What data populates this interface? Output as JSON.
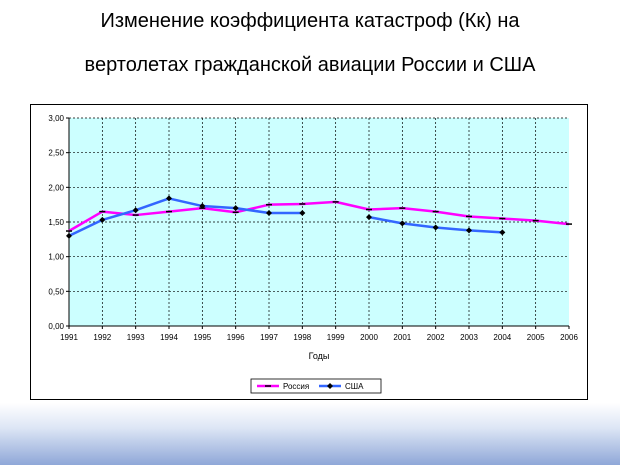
{
  "header": {
    "title_line1": "Изменение коэффициента катастроф (Кк) на",
    "title_line2": "вертолетах гражданской авиации России и США"
  },
  "chart_data": {
    "type": "line",
    "categories": [
      "1991",
      "1992",
      "1993",
      "1994",
      "1995",
      "1996",
      "1997",
      "1998",
      "1999",
      "2000",
      "2001",
      "2002",
      "2003",
      "2004",
      "2005",
      "2006"
    ],
    "series": [
      {
        "name": "Россия",
        "color": "#ff00ff",
        "values": [
          1.37,
          1.65,
          1.6,
          1.65,
          1.7,
          1.64,
          1.75,
          1.76,
          1.79,
          1.68,
          1.7,
          1.65,
          1.58,
          1.55,
          1.52,
          1.47
        ]
      },
      {
        "name": "США",
        "color": "#3366ff",
        "values": [
          1.3,
          1.53,
          1.67,
          1.84,
          1.73,
          1.7,
          1.63,
          1.63,
          null,
          1.57,
          1.48,
          1.42,
          1.38,
          1.35,
          null,
          null
        ]
      }
    ],
    "title": "",
    "xlabel": "Годы",
    "ylabel": "",
    "ylim": [
      0,
      3
    ],
    "yticks": [
      "0,00",
      "0,50",
      "1,00",
      "1,50",
      "2,00",
      "2,50",
      "3,00"
    ],
    "plot_background": "#ccffff",
    "grid": true,
    "legend_position": "bottom"
  }
}
